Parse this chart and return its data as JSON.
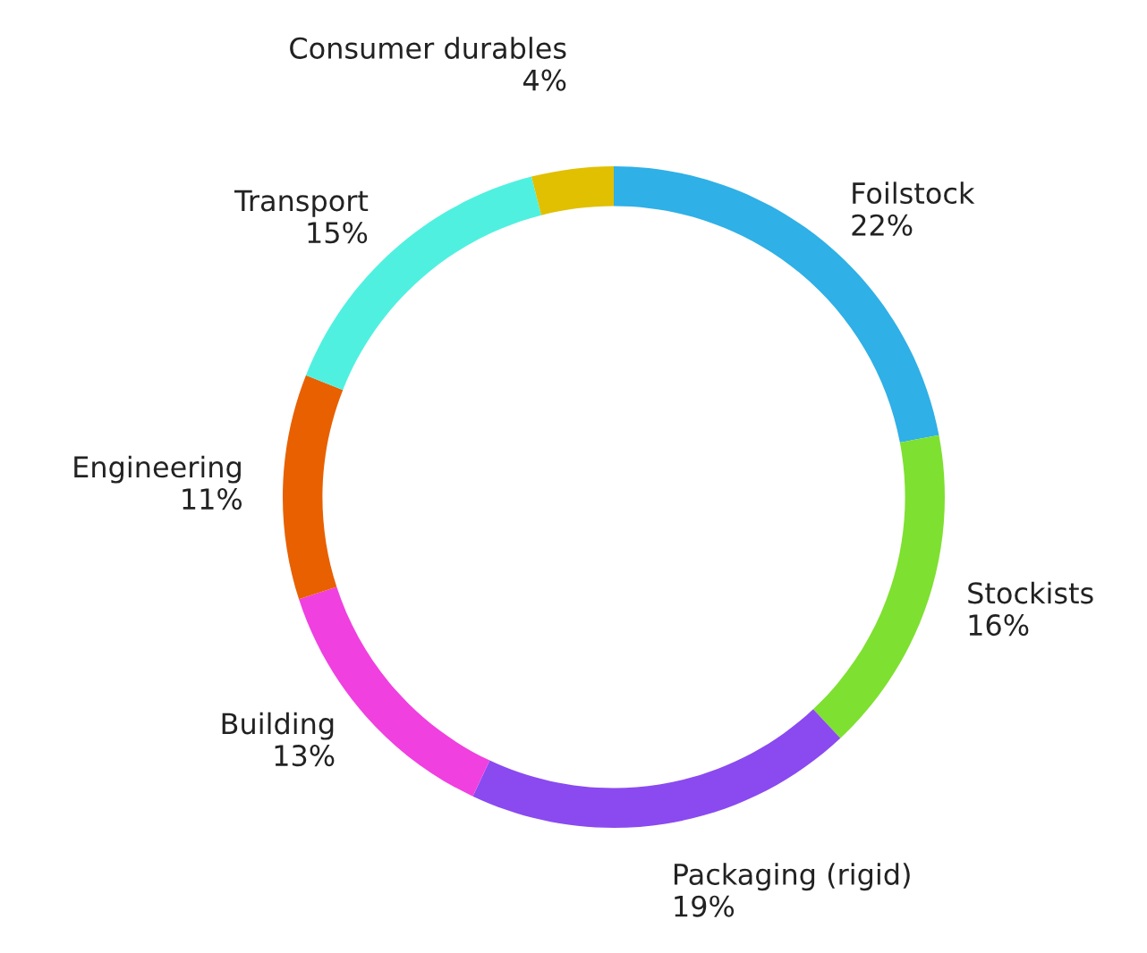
{
  "chart_data": {
    "type": "donut",
    "categories": [
      "Foilstock",
      "Stockists",
      "Packaging (rigid)",
      "Building",
      "Engineering",
      "Transport",
      "Consumer durables"
    ],
    "values": [
      22,
      16,
      19,
      13,
      11,
      15,
      4
    ],
    "colors": [
      "#2fb0e6",
      "#7ee030",
      "#8a4af0",
      "#f040e0",
      "#e86000",
      "#50f0e0",
      "#e0c000"
    ],
    "value_labels": [
      "22%",
      "16%",
      "19%",
      "13%",
      "11%",
      "15%",
      "4%"
    ]
  }
}
